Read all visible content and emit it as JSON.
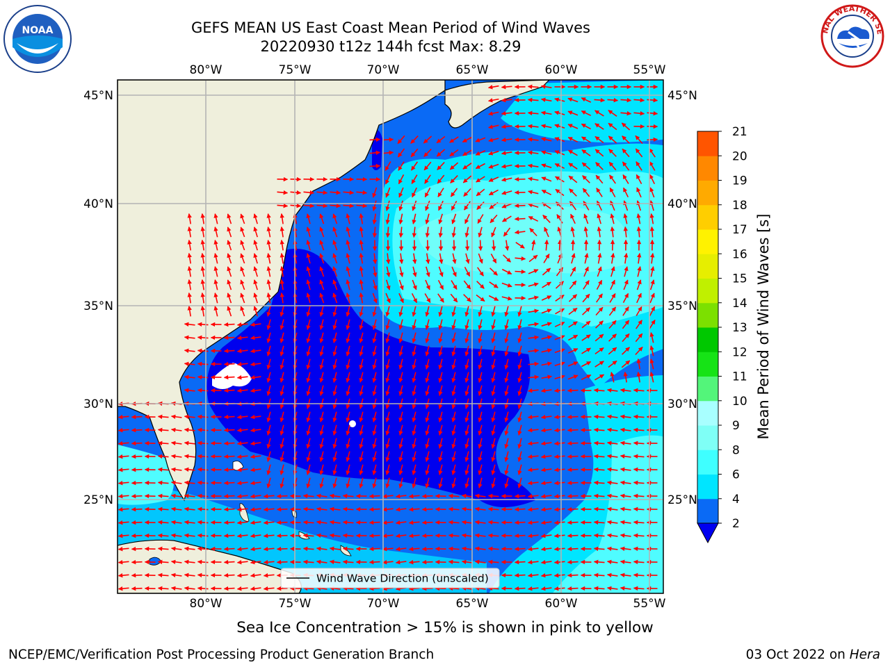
{
  "title": {
    "line1": "GEFS MEAN US East Coast Mean Period of Wind Waves",
    "line2": "20220930 t12z 144h fcst   Max: 8.29"
  },
  "axes": {
    "lon_labels": [
      "80°W",
      "75°W",
      "70°W",
      "65°W",
      "60°W",
      "55°W"
    ],
    "lat_labels": [
      "45°N",
      "40°N",
      "35°N",
      "30°N",
      "25°N"
    ]
  },
  "legend": {
    "label": "Wind Wave Direction (unscaled)"
  },
  "colorbar": {
    "title": "Mean Period of Wind Waves [s]",
    "ticks": [
      "2",
      "4",
      "6",
      "8",
      "9",
      "10",
      "11",
      "12",
      "13",
      "14",
      "15",
      "16",
      "17",
      "18",
      "19",
      "20",
      "21"
    ],
    "colors": [
      "#0a6af5",
      "#00e5ff",
      "#3fffff",
      "#7ffff6",
      "#a8ffff",
      "#53f57a",
      "#16e316",
      "#00c800",
      "#7ce000",
      "#c0f000",
      "#e6ee00",
      "#fff200",
      "#ffce00",
      "#ffaa00",
      "#ff8800",
      "#ff5500",
      "#ff2200",
      "#ff0000"
    ],
    "under_color": "#0000f0"
  },
  "field_colors": {
    "land": "#efefdc",
    "deep_blue": "#0000ee",
    "mid_blue": "#0a6af5",
    "cyan": "#00ffff",
    "light_cyan": "#4ffcff",
    "arrow": "#ff0000",
    "grid": "#b4b4b4"
  },
  "footer": {
    "note": "Sea Ice Concentration > 15% is shown in pink to yellow",
    "credit": "NCEP/EMC/Verification Post Processing Product Generation Branch",
    "date": "03 Oct 2022 on",
    "host": "Hera"
  },
  "logos": {
    "left": "NOAA",
    "right": "NATIONAL WEATHER SERVICE"
  }
}
